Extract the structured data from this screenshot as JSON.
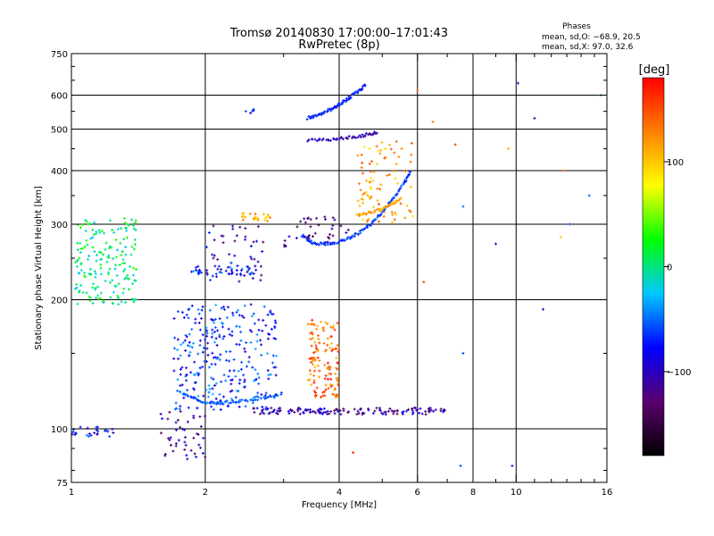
{
  "chart_data": {
    "type": "scatter",
    "title": "Tromsø 20140830 17:00:00–17:01:43",
    "subtitle": "RwPretec (8p)",
    "phases_box": {
      "header": "Phases",
      "line_o": "mean, sd,O: −68.9, 20.5",
      "line_x": "mean, sd,X:  97.0, 32.6"
    },
    "xlabel": "Frequency [MHz]",
    "ylabel": "Stationary phase Virtual Height [km]",
    "x_scale": "log",
    "y_scale": "log",
    "xlim": [
      1,
      16
    ],
    "ylim": [
      75,
      750
    ],
    "x_ticks": [
      {
        "value": 1,
        "label": "1"
      },
      {
        "value": 2,
        "label": "2"
      },
      {
        "value": 4,
        "label": "4"
      },
      {
        "value": 6,
        "label": "6"
      },
      {
        "value": 8,
        "label": "8"
      },
      {
        "value": 10,
        "label": "10"
      },
      {
        "value": 16,
        "label": "16"
      }
    ],
    "x_gridlines": [
      2,
      4,
      6,
      8,
      10
    ],
    "y_ticks": [
      {
        "value": 75,
        "label": "75"
      },
      {
        "value": 100,
        "label": "100"
      },
      {
        "value": 200,
        "label": "200"
      },
      {
        "value": 300,
        "label": "300"
      },
      {
        "value": 400,
        "label": "400"
      },
      {
        "value": 500,
        "label": "500"
      },
      {
        "value": 600,
        "label": "600"
      },
      {
        "value": 750,
        "label": "750"
      }
    ],
    "y_gridlines": [
      100,
      200,
      300,
      400,
      500,
      600
    ],
    "grid": true,
    "colorbar": {
      "label": "[deg]",
      "range": [
        -180,
        180
      ],
      "ticks": [
        {
          "value": 100,
          "label": "100"
        },
        {
          "value": 0,
          "label": "0"
        },
        {
          "value": -100,
          "label": "−100"
        }
      ],
      "colors": [
        "#000000",
        "#5a006e",
        "#0000ff",
        "#00c8ff",
        "#00ff00",
        "#ffff00",
        "#ff8000",
        "#ff0000"
      ]
    },
    "clusters": [
      {
        "x": [
          1.02,
          1.4
        ],
        "y": [
          195,
          310
        ],
        "n": 180,
        "phase": 5
      },
      {
        "x": [
          1.0,
          1.25
        ],
        "y": [
          95,
          101
        ],
        "n": 25,
        "phase": -75
      },
      {
        "x": [
          1.55,
          2.0
        ],
        "y": [
          85,
          110
        ],
        "n": 45,
        "phase": -110
      },
      {
        "x": [
          1.7,
          2.9
        ],
        "y": [
          110,
          195
        ],
        "n": 280,
        "phase": -65
      },
      {
        "x": [
          1.85,
          2.6
        ],
        "y": [
          228,
          240
        ],
        "n": 40,
        "phase": -70
      },
      {
        "x": [
          2.0,
          2.7
        ],
        "y": [
          220,
          300
        ],
        "n": 50,
        "phase": -95
      },
      {
        "x": [
          2.4,
          2.8
        ],
        "y": [
          305,
          318
        ],
        "n": 25,
        "phase": 110
      },
      {
        "x": [
          2.45,
          2.6
        ],
        "y": [
          545,
          560
        ],
        "n": 6,
        "phase": -60
      },
      {
        "x": [
          3.4,
          4.0
        ],
        "y": [
          118,
          180
        ],
        "n": 130,
        "phase": 140
      },
      {
        "x": [
          2.5,
          7.0
        ],
        "y": [
          108,
          112
        ],
        "n": 140,
        "phase": -110
      },
      {
        "x": [
          4.4,
          5.9
        ],
        "y": [
          300,
          470
        ],
        "n": 90,
        "phase": 120
      },
      {
        "x": [
          3.0,
          4.2
        ],
        "y": [
          265,
          320
        ],
        "n": 40,
        "phase": -120
      }
    ],
    "traces": [
      {
        "x": [
          1.75,
          1.9,
          2.05,
          2.2,
          2.4,
          2.7,
          3.0
        ],
        "y": [
          122,
          117,
          115,
          115,
          116,
          118,
          121
        ],
        "phase": -55
      },
      {
        "x": [
          3.3,
          3.5,
          3.8,
          4.1,
          4.4,
          4.7,
          5.0,
          5.3,
          5.6,
          5.8
        ],
        "y": [
          282,
          271,
          270,
          275,
          285,
          300,
          320,
          345,
          375,
          400
        ],
        "phase": -65
      },
      {
        "x": [
          3.4,
          3.6,
          3.8,
          4.0,
          4.2,
          4.4,
          4.6
        ],
        "y": [
          530,
          540,
          555,
          570,
          590,
          610,
          635
        ],
        "phase": -70
      },
      {
        "x": [
          3.4,
          3.8,
          4.2,
          4.6,
          4.9
        ],
        "y": [
          470,
          473,
          477,
          485,
          490
        ],
        "phase": -105
      },
      {
        "x": [
          4.4,
          4.7,
          5.0,
          5.3,
          5.5
        ],
        "y": [
          315,
          320,
          325,
          335,
          345
        ],
        "phase": 115
      }
    ],
    "isolated_points": [
      {
        "x": 10.1,
        "y": 640,
        "phase": -95
      },
      {
        "x": 11.0,
        "y": 530,
        "phase": -100
      },
      {
        "x": 12.8,
        "y": 400,
        "phase": 150
      },
      {
        "x": 13.2,
        "y": 300,
        "phase": -60
      },
      {
        "x": 14.6,
        "y": 350,
        "phase": -50
      },
      {
        "x": 15.5,
        "y": 600,
        "phase": -40
      },
      {
        "x": 9.6,
        "y": 450,
        "phase": 110
      },
      {
        "x": 9.0,
        "y": 270,
        "phase": -90
      },
      {
        "x": 11.5,
        "y": 190,
        "phase": -95
      },
      {
        "x": 12.6,
        "y": 280,
        "phase": 100
      },
      {
        "x": 6.5,
        "y": 520,
        "phase": 130
      },
      {
        "x": 7.3,
        "y": 460,
        "phase": 160
      },
      {
        "x": 7.6,
        "y": 330,
        "phase": -50
      },
      {
        "x": 7.6,
        "y": 150,
        "phase": -60
      },
      {
        "x": 7.5,
        "y": 82,
        "phase": -60
      },
      {
        "x": 9.8,
        "y": 82,
        "phase": -70
      },
      {
        "x": 6.2,
        "y": 220,
        "phase": 160
      },
      {
        "x": 6.0,
        "y": 615,
        "phase": 140
      },
      {
        "x": 4.3,
        "y": 88,
        "phase": 170
      }
    ]
  }
}
